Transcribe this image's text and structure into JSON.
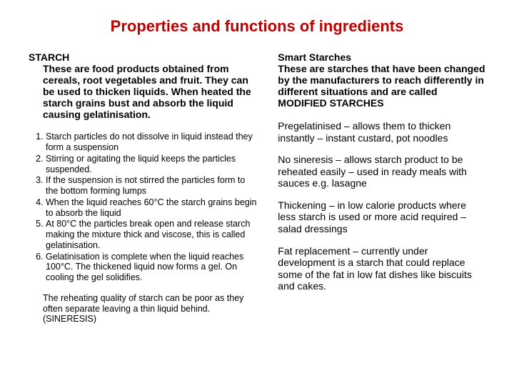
{
  "title_color": "#c00000",
  "body_color": "#000000",
  "title": "Properties and functions of ingredients",
  "left": {
    "heading": "STARCH",
    "intro": "These are food products obtained from cereals, root vegetables and fruit. They can be used to thicken liquids. When heated the starch grains bust and absorb the liquid causing gelatinisation.",
    "steps": [
      "Starch particles do not dissolve in liquid instead they form a suspension",
      "Stirring or agitating the liquid keeps the particles suspended.",
      "If the suspension is not stirred the particles form to the bottom forming lumps",
      "When the liquid reaches 60°C the starch grains begin to absorb the liquid",
      "At 80°C the particles break open and release starch making the mixture thick and viscose, this is called gelatinisation.",
      "Gelatinisation is complete when the liquid reaches 100°C. The thickened liquid now forms a gel. On cooling the gel solidifies."
    ],
    "note": "The reheating quality of starch can be poor as they often separate leaving a thin liquid behind. (SINERESIS)"
  },
  "right": {
    "heading": "Smart Starches",
    "intro": "These are starches that have been changed by the manufacturers to reach differently in different situations and are called MODIFIED STARCHES",
    "paras": [
      "Pregelatinised – allows them to thicken instantly – instant custard, pot noodles",
      "No sineresis – allows starch product to be reheated easily – used in ready meals with sauces e.g. lasagne",
      "Thickening – in low calorie products where less starch is used or more acid required – salad dressings",
      "Fat replacement – currently under development is a starch that could replace some of the fat in low fat dishes like biscuits and cakes."
    ]
  }
}
